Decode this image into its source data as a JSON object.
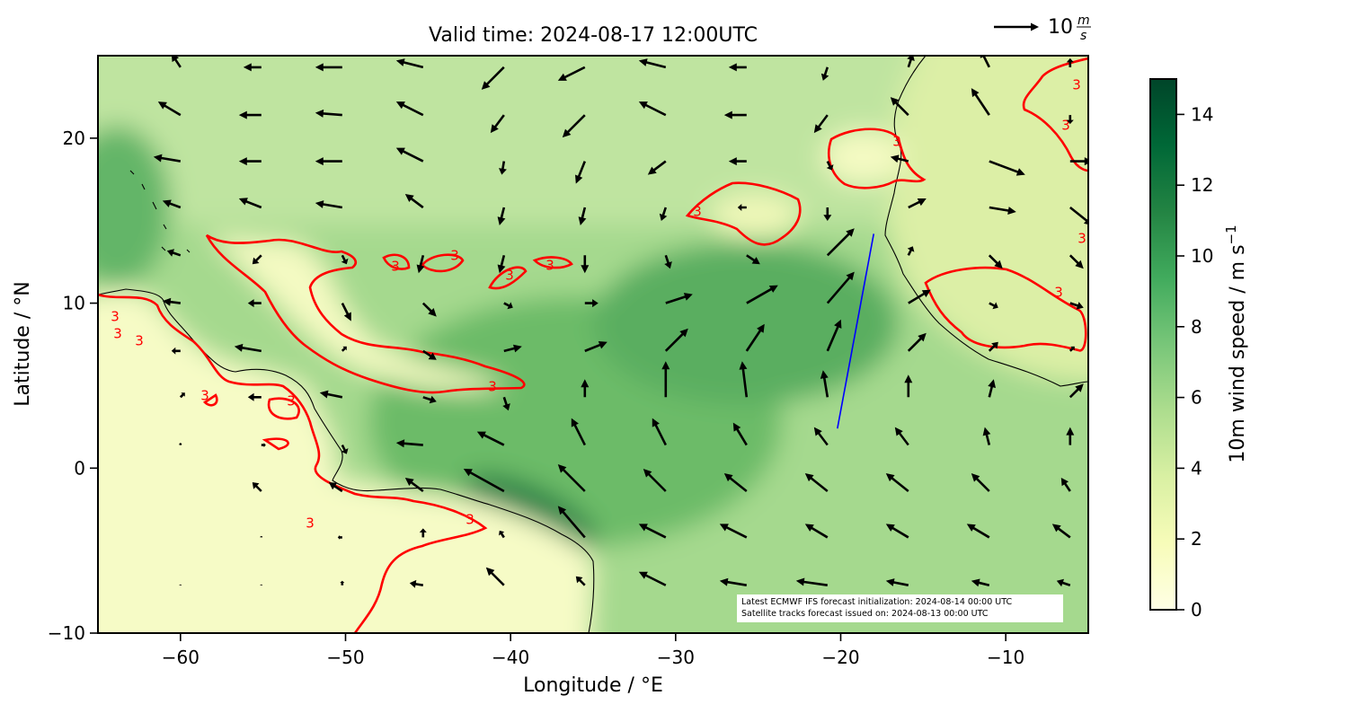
{
  "chart_data": {
    "type": "quiver",
    "title": "Valid time: 2024-08-17 12:00UTC",
    "xlabel": "Longitude / °E",
    "ylabel": "Latitude / °N",
    "xlim": [
      -65,
      -5
    ],
    "ylim": [
      -10,
      25
    ],
    "xticks": [
      {
        "value": -60,
        "label": "−60"
      },
      {
        "value": -50,
        "label": "−50"
      },
      {
        "value": -40,
        "label": "−40"
      },
      {
        "value": -30,
        "label": "−30"
      },
      {
        "value": -20,
        "label": "−20"
      },
      {
        "value": -10,
        "label": "−10"
      }
    ],
    "yticks": [
      {
        "value": -10,
        "label": "−10"
      },
      0,
      10,
      20
    ],
    "colorbar_label": "10m wind speed / m s",
    "colorbar_label_exponent": "−1",
    "colorbar_lim": [
      0,
      15
    ],
    "colorbar_ticks": [
      0,
      2,
      4,
      6,
      8,
      10,
      12,
      14
    ],
    "colormap": [
      "#ffffe5",
      "#f7fcb9",
      "#d9f0a3",
      "#addd8e",
      "#78c679",
      "#41ab5d",
      "#238443",
      "#006837",
      "#004529"
    ],
    "quiver_key": {
      "value": 10,
      "unit_numerator": "m",
      "unit_denominator": "s"
    },
    "contour_label": "3",
    "contour_color": "#ff0000",
    "arrow_color": "#000000",
    "annotation": [
      "Latest ECMWF IFS forecast initialization: 2024-08-14 00:00 UTC",
      "Satellite tracks forecast issued on: 2024-08-13 00:00 UTC"
    ],
    "track": {
      "color": "#0000ff",
      "lon": [
        -20.2,
        -18.0
      ],
      "lat": [
        2.4,
        14.2
      ]
    },
    "wind": {
      "lon": [
        -60,
        -55.1,
        -50.2,
        -45.3,
        -40.4,
        -35.5,
        -30.6,
        -25.7,
        -20.8,
        -15.9,
        -11,
        -6.1
      ],
      "lat": [
        24.3,
        21.4,
        18.6,
        15.8,
        12.9,
        10.0,
        7.1,
        4.3,
        1.4,
        -1.4,
        -4.2,
        -7.1
      ],
      "u": [
        [
          -2,
          -4,
          -6,
          -6,
          -5,
          -6,
          -6,
          -4,
          -1,
          1,
          -2,
          0
        ],
        [
          -5,
          -5,
          -6,
          -6,
          -3,
          -5,
          -6,
          -5,
          -3,
          -4,
          -4,
          0
        ],
        [
          -6,
          -5,
          -6,
          -6,
          -0.5,
          -2,
          -4,
          -4,
          1,
          -4,
          8,
          5
        ],
        [
          -4,
          -5,
          -6,
          -4,
          -1,
          -1,
          -1,
          -2,
          0,
          4,
          6,
          5
        ],
        [
          -3,
          -2,
          1,
          -1,
          -1,
          0,
          1,
          3,
          6,
          1,
          3,
          3
        ],
        [
          -4,
          -3,
          2,
          3,
          2,
          3,
          6,
          7,
          6,
          5,
          2,
          3
        ],
        [
          -2,
          -6,
          1,
          3,
          4,
          5,
          5,
          4,
          3,
          4,
          2,
          1
        ],
        [
          1,
          -3,
          -5,
          3,
          1,
          0,
          0,
          -1,
          -1,
          0,
          1,
          3
        ],
        [
          0,
          1,
          1,
          -6,
          -6,
          -3,
          -3,
          -3,
          -3,
          -3,
          -1,
          0
        ],
        [
          0,
          -2,
          -3,
          -4,
          -9,
          -6,
          -5,
          -5,
          -5,
          -5,
          -4,
          -2
        ],
        [
          0,
          0,
          -1,
          0,
          -1,
          -6,
          -6,
          -6,
          -5,
          -5,
          -5,
          -4
        ],
        [
          0,
          0,
          0,
          -3,
          -4,
          -2,
          -6,
          -6,
          -7,
          -5,
          -4,
          -3
        ]
      ],
      "v": [
        [
          3,
          0,
          0,
          1.5,
          -5,
          -3,
          1.5,
          0,
          -3,
          3,
          4,
          2
        ],
        [
          3,
          0,
          0.5,
          3,
          -4,
          -5,
          3,
          0,
          -4,
          4,
          6,
          -2
        ],
        [
          1,
          0,
          0,
          3,
          -3,
          -5,
          -3,
          0,
          -2,
          1,
          -3,
          0
        ],
        [
          1.5,
          2,
          1,
          3,
          -4,
          -4,
          -3,
          0,
          -3,
          2,
          -1,
          -4
        ],
        [
          1,
          -2,
          -2,
          -4,
          -4,
          -4,
          -3,
          -2,
          6,
          2,
          -3,
          -3
        ],
        [
          0.5,
          0,
          -4,
          -3,
          -1,
          0,
          2,
          4,
          7,
          3,
          -1,
          -1
        ],
        [
          0,
          1,
          1,
          -2,
          1,
          2,
          5,
          6,
          7,
          4,
          2,
          1
        ],
        [
          1,
          0,
          1,
          -1,
          -3,
          4,
          8,
          8,
          6,
          5,
          4,
          3
        ],
        [
          0.5,
          0,
          -2,
          0.5,
          3,
          6,
          6,
          5,
          4,
          4,
          4,
          4
        ],
        [
          0,
          2,
          2,
          3,
          5,
          6,
          5,
          4,
          4,
          4,
          4,
          3
        ],
        [
          0,
          0.3,
          0,
          2,
          1.5,
          7,
          3,
          3,
          3,
          3,
          3,
          3
        ],
        [
          0.2,
          0.2,
          1,
          0.5,
          4,
          2,
          3,
          1,
          1,
          1,
          1,
          1
        ]
      ]
    }
  }
}
